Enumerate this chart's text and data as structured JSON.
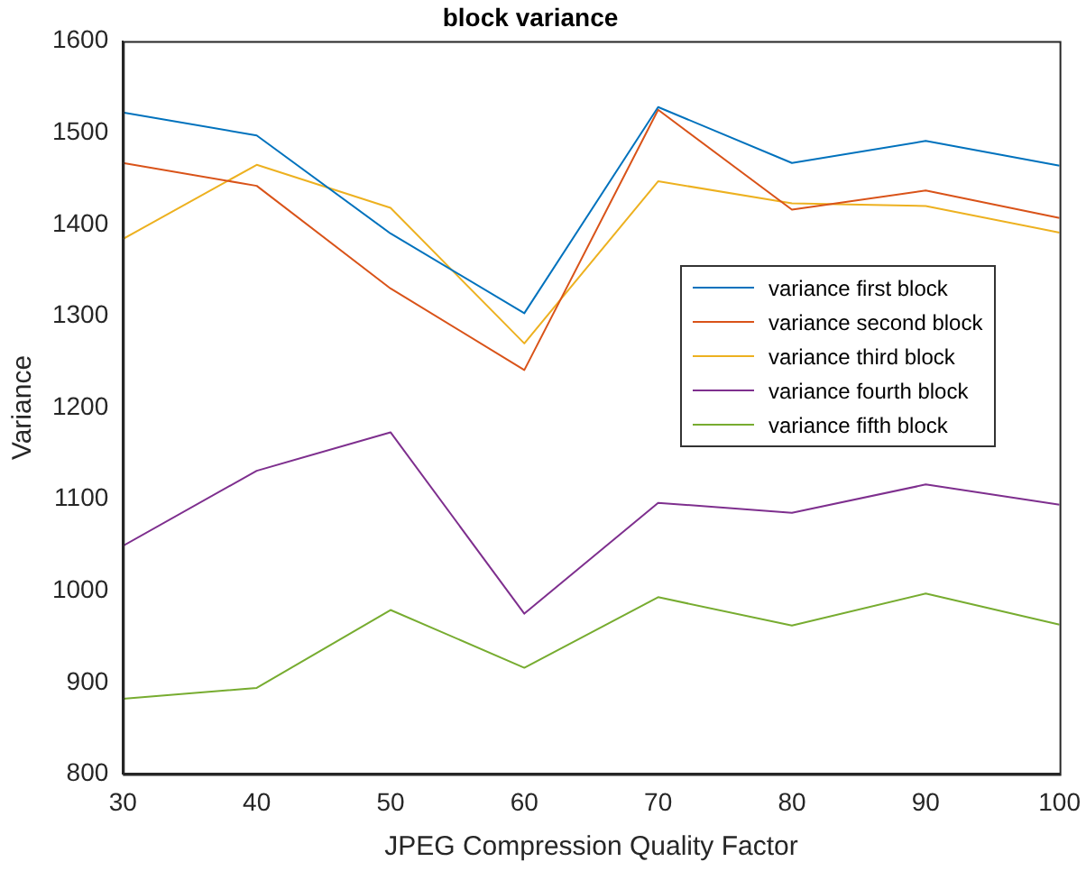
{
  "chart_data": {
    "type": "line",
    "title": "block variance",
    "xlabel": "JPEG Compression Quality Factor",
    "ylabel": "Variance",
    "x": [
      30,
      40,
      50,
      60,
      70,
      80,
      90,
      100
    ],
    "series": [
      {
        "name": "variance first block",
        "color": "#0072bd",
        "values": [
          1522,
          1497,
          1390,
          1303,
          1528,
          1467,
          1491,
          1464
        ]
      },
      {
        "name": "variance second block",
        "color": "#d95319",
        "values": [
          1467,
          1442,
          1330,
          1241,
          1525,
          1416,
          1437,
          1407
        ]
      },
      {
        "name": "variance third block",
        "color": "#edb120",
        "values": [
          1384,
          1465,
          1418,
          1270,
          1447,
          1423,
          1420,
          1391
        ]
      },
      {
        "name": "variance fourth block",
        "color": "#7e2f8e",
        "values": [
          1049,
          1131,
          1173,
          975,
          1096,
          1085,
          1116,
          1094
        ]
      },
      {
        "name": "variance fifth block",
        "color": "#77ac30",
        "values": [
          882,
          894,
          979,
          916,
          993,
          962,
          997,
          963
        ]
      }
    ],
    "xlim": [
      30,
      100
    ],
    "xticks": [
      30,
      40,
      50,
      60,
      70,
      80,
      90,
      100
    ],
    "ylim": [
      800,
      1600
    ],
    "yticks": [
      800,
      900,
      1000,
      1100,
      1200,
      1300,
      1400,
      1500,
      1600
    ],
    "grid": false,
    "legend": "right",
    "marker": "none",
    "line_style": "solid"
  }
}
